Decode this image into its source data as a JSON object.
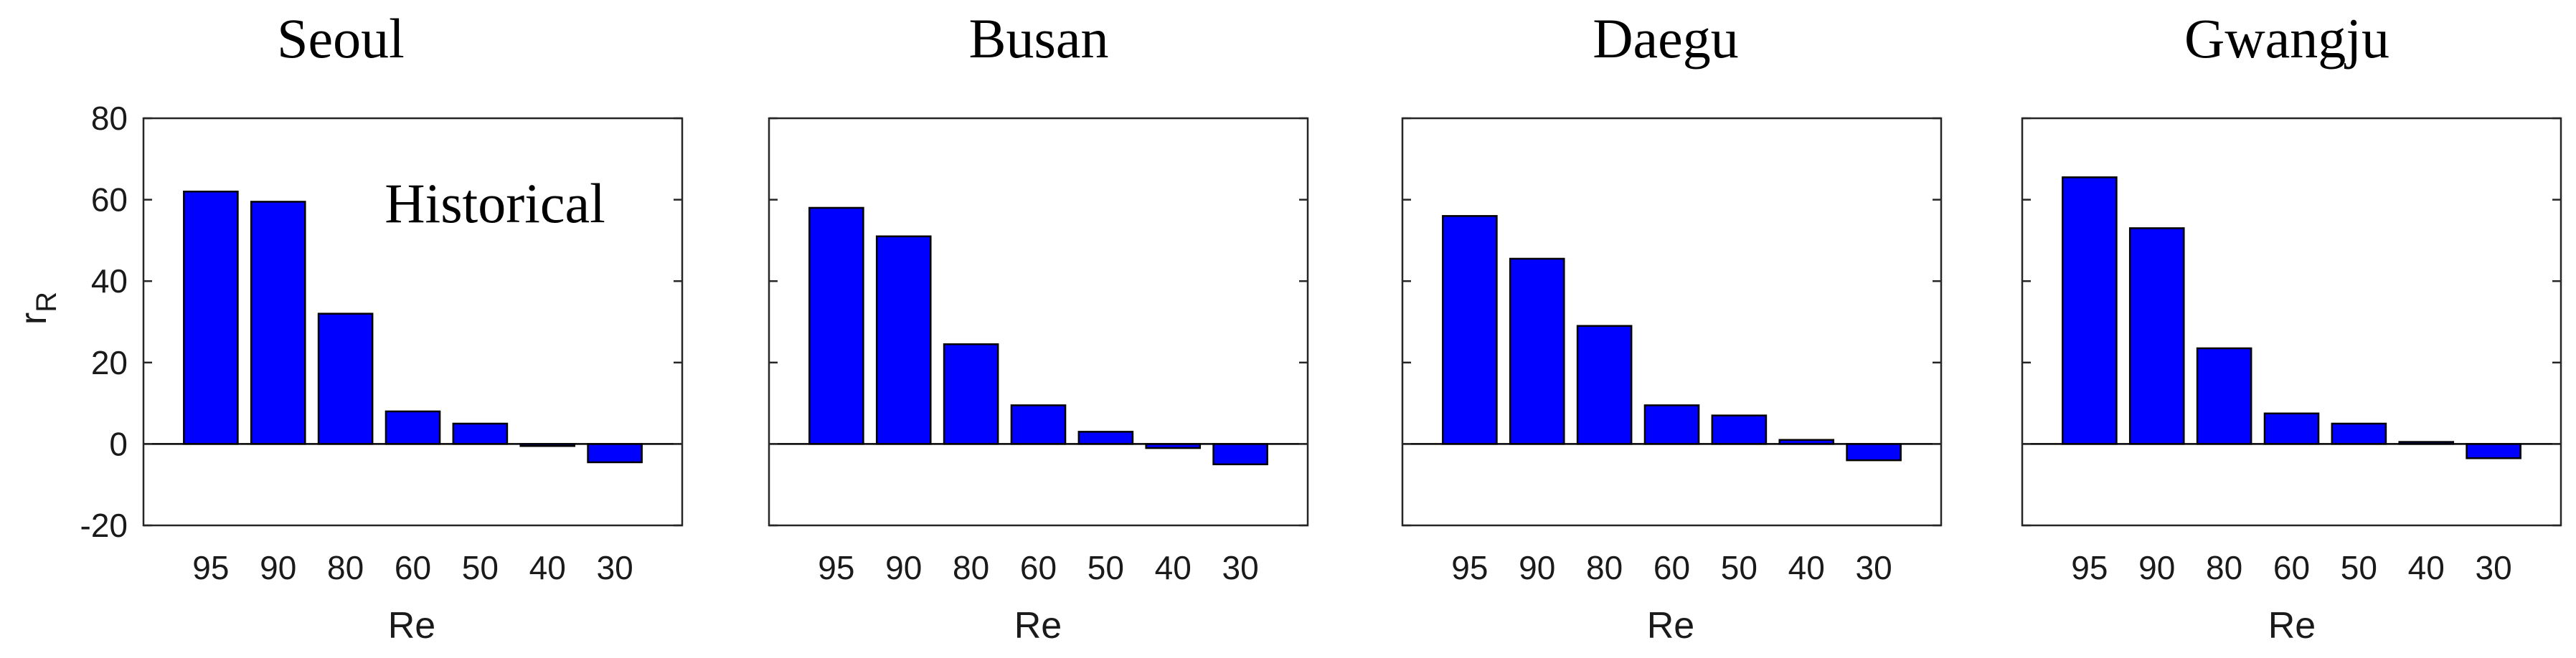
{
  "figure": {
    "ylabel_main": "r",
    "ylabel_sub": "R",
    "xlabel": "Re"
  },
  "chart_data": [
    {
      "type": "bar",
      "title": "Seoul",
      "annotation": "Historical",
      "categories": [
        "95",
        "90",
        "80",
        "60",
        "50",
        "40",
        "30"
      ],
      "values": [
        62,
        59.5,
        32,
        8,
        5,
        -0.5,
        -4.5
      ],
      "xlabel": "Re",
      "ylabel": "rR",
      "ylim": [
        -20,
        80
      ],
      "yticks": [
        -20,
        0,
        20,
        40,
        60,
        80
      ],
      "bar_color": "#0000FF",
      "grid": false
    },
    {
      "type": "bar",
      "title": "Busan",
      "categories": [
        "95",
        "90",
        "80",
        "60",
        "50",
        "40",
        "30"
      ],
      "values": [
        58,
        51,
        24.5,
        9.5,
        3,
        -1,
        -5
      ],
      "xlabel": "Re",
      "ylim": [
        -20,
        80
      ],
      "bar_color": "#0000FF",
      "grid": false
    },
    {
      "type": "bar",
      "title": "Daegu",
      "categories": [
        "95",
        "90",
        "80",
        "60",
        "50",
        "40",
        "30"
      ],
      "values": [
        56,
        45.5,
        29,
        9.5,
        7,
        1,
        -4
      ],
      "xlabel": "Re",
      "ylim": [
        -20,
        80
      ],
      "bar_color": "#0000FF",
      "grid": false
    },
    {
      "type": "bar",
      "title": "Gwangju",
      "categories": [
        "95",
        "90",
        "80",
        "60",
        "50",
        "40",
        "30"
      ],
      "values": [
        65.5,
        53,
        23.5,
        7.5,
        5,
        0.5,
        -3.5
      ],
      "xlabel": "Re",
      "ylim": [
        -20,
        80
      ],
      "bar_color": "#0000FF",
      "grid": false
    }
  ]
}
